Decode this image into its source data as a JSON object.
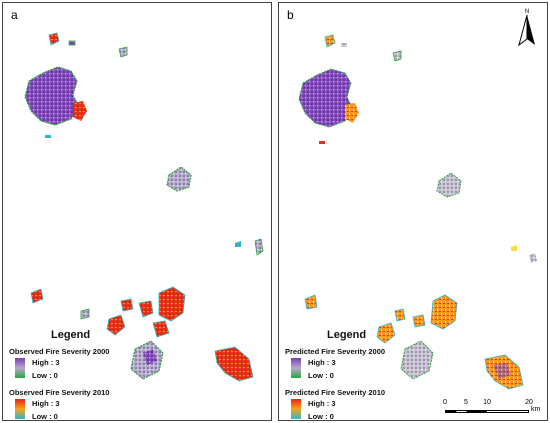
{
  "panels": [
    {
      "label": "a",
      "legend": {
        "title": "Legend",
        "entries": [
          {
            "heading": "Observed Fire Severity 2000",
            "high": "High : 3",
            "low": "Low : 0",
            "colors": [
              "#7b3fb0",
              "#b7a9cf",
              "#2ea43a"
            ]
          },
          {
            "heading": "Observed Fire Severity 2010",
            "high": "High : 3",
            "low": "Low : 0",
            "colors": [
              "#e8201b",
              "#f7a21a",
              "#2fb5c7"
            ]
          }
        ]
      }
    },
    {
      "label": "b",
      "legend": {
        "title": "Legend",
        "entries": [
          {
            "heading": "Predicted Fire Severity 2000",
            "high": "High : 3",
            "low": "Low : 0",
            "colors": [
              "#7b3fb0",
              "#b7a9cf",
              "#2ea43a"
            ]
          },
          {
            "heading": "Predicted Fire Severity 2010",
            "high": "High : 3",
            "low": "Low : 0",
            "colors": [
              "#e8201b",
              "#f7a21a",
              "#2fb5c7"
            ]
          }
        ]
      }
    }
  ],
  "north_arrow": {
    "letter": "N"
  },
  "scale_bar": {
    "ticks": [
      "0",
      "5",
      "10",
      "20"
    ],
    "unit": "km"
  }
}
